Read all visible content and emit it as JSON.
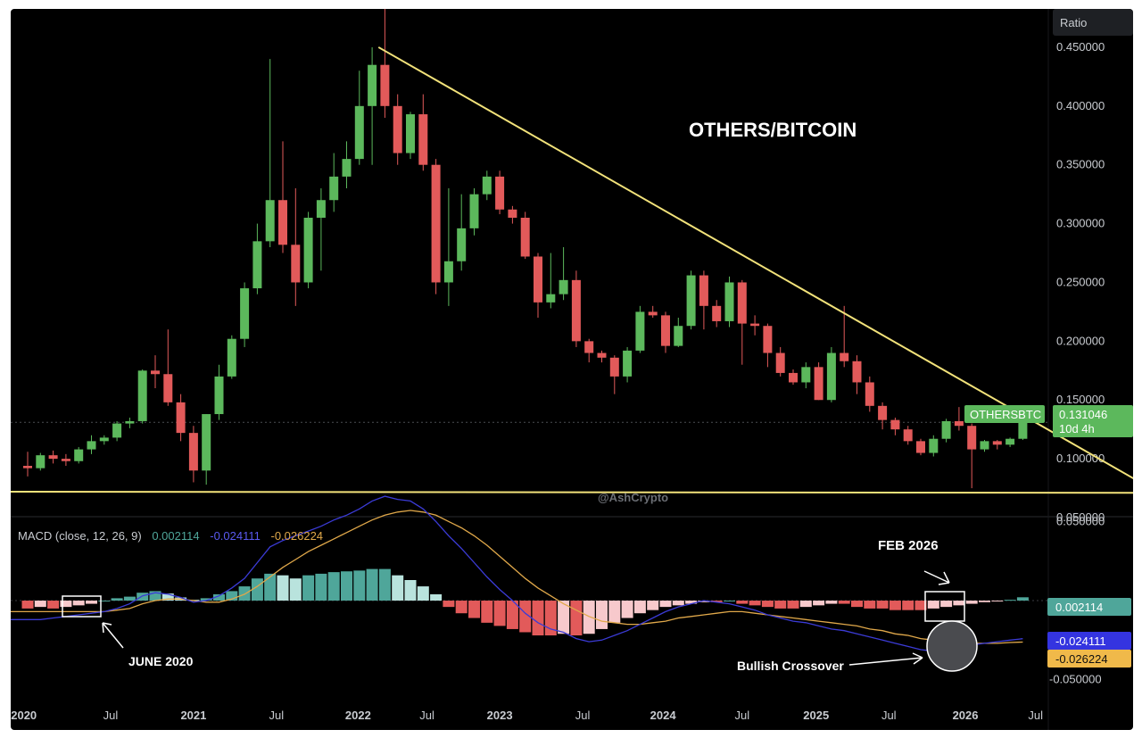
{
  "chart_title": "OTHERS/BITCOIN",
  "watermark": "@AshCrypto",
  "scale_button": "Ratio",
  "colors": {
    "background": "#000000",
    "up": "#5cb85c",
    "down": "#e25a5a",
    "trendline": "#f2e27a",
    "macd_line": "#3b3bd6",
    "signal_line": "#e0a84a",
    "hist_pos_strong": "#4fa69a",
    "hist_pos_weak": "#b9e3dd",
    "hist_neg_strong": "#e25a5a",
    "hist_neg_weak": "#f7c9cc"
  },
  "chart_data": [
    {
      "type": "candlestick",
      "title": "OTHERS/BITCOIN",
      "ylim": [
        0.05,
        0.475
      ],
      "y_ticks": [
        "0.450000",
        "0.400000",
        "0.350000",
        "0.300000",
        "0.250000",
        "0.200000",
        "0.150000",
        "0.100000",
        "0.050000"
      ],
      "x_ticks": [
        "2020",
        "Jul",
        "2021",
        "Jul",
        "2022",
        "Jul",
        "2023",
        "Jul",
        "2024",
        "Jul",
        "2025",
        "Jul",
        "2026",
        "Jul"
      ],
      "bar_period": "10 days",
      "last_price": {
        "symbol": "OTHERSBTC",
        "value": "0.131046",
        "countdown": "10d 4h"
      },
      "ohlc": [
        [
          0.094,
          0.106,
          0.085,
          0.092
        ],
        [
          0.092,
          0.105,
          0.09,
          0.103
        ],
        [
          0.103,
          0.107,
          0.096,
          0.1
        ],
        [
          0.1,
          0.104,
          0.094,
          0.098
        ],
        [
          0.098,
          0.11,
          0.096,
          0.108
        ],
        [
          0.108,
          0.12,
          0.104,
          0.115
        ],
        [
          0.115,
          0.12,
          0.112,
          0.118
        ],
        [
          0.118,
          0.132,
          0.115,
          0.13
        ],
        [
          0.13,
          0.135,
          0.126,
          0.132
        ],
        [
          0.132,
          0.176,
          0.13,
          0.175
        ],
        [
          0.175,
          0.188,
          0.16,
          0.172
        ],
        [
          0.172,
          0.21,
          0.145,
          0.148
        ],
        [
          0.148,
          0.155,
          0.115,
          0.122
        ],
        [
          0.122,
          0.128,
          0.08,
          0.09
        ],
        [
          0.09,
          0.138,
          0.078,
          0.138
        ],
        [
          0.138,
          0.18,
          0.133,
          0.17
        ],
        [
          0.17,
          0.205,
          0.168,
          0.202
        ],
        [
          0.202,
          0.25,
          0.195,
          0.245
        ],
        [
          0.245,
          0.3,
          0.24,
          0.285
        ],
        [
          0.285,
          0.44,
          0.28,
          0.32
        ],
        [
          0.32,
          0.37,
          0.275,
          0.282
        ],
        [
          0.282,
          0.33,
          0.23,
          0.25
        ],
        [
          0.25,
          0.31,
          0.245,
          0.305
        ],
        [
          0.305,
          0.33,
          0.26,
          0.32
        ],
        [
          0.32,
          0.36,
          0.31,
          0.34
        ],
        [
          0.34,
          0.37,
          0.33,
          0.355
        ],
        [
          0.355,
          0.43,
          0.35,
          0.4
        ],
        [
          0.4,
          0.45,
          0.35,
          0.435
        ],
        [
          0.435,
          0.492,
          0.39,
          0.4
        ],
        [
          0.4,
          0.41,
          0.35,
          0.36
        ],
        [
          0.36,
          0.395,
          0.355,
          0.393
        ],
        [
          0.393,
          0.41,
          0.345,
          0.35
        ],
        [
          0.35,
          0.355,
          0.24,
          0.25
        ],
        [
          0.25,
          0.33,
          0.23,
          0.268
        ],
        [
          0.268,
          0.325,
          0.26,
          0.296
        ],
        [
          0.296,
          0.33,
          0.29,
          0.325
        ],
        [
          0.325,
          0.345,
          0.32,
          0.34
        ],
        [
          0.34,
          0.345,
          0.308,
          0.312
        ],
        [
          0.312,
          0.315,
          0.3,
          0.305
        ],
        [
          0.305,
          0.31,
          0.27,
          0.272
        ],
        [
          0.272,
          0.275,
          0.22,
          0.233
        ],
        [
          0.233,
          0.275,
          0.228,
          0.24
        ],
        [
          0.24,
          0.28,
          0.235,
          0.252
        ],
        [
          0.252,
          0.26,
          0.195,
          0.2
        ],
        [
          0.2,
          0.202,
          0.182,
          0.19
        ],
        [
          0.19,
          0.192,
          0.182,
          0.186
        ],
        [
          0.186,
          0.188,
          0.155,
          0.17
        ],
        [
          0.17,
          0.195,
          0.165,
          0.192
        ],
        [
          0.192,
          0.23,
          0.19,
          0.225
        ],
        [
          0.225,
          0.23,
          0.22,
          0.222
        ],
        [
          0.222,
          0.225,
          0.19,
          0.196
        ],
        [
          0.196,
          0.22,
          0.195,
          0.213
        ],
        [
          0.213,
          0.26,
          0.21,
          0.256
        ],
        [
          0.256,
          0.26,
          0.21,
          0.23
        ],
        [
          0.23,
          0.235,
          0.212,
          0.217
        ],
        [
          0.217,
          0.255,
          0.212,
          0.25
        ],
        [
          0.25,
          0.252,
          0.18,
          0.215
        ],
        [
          0.215,
          0.222,
          0.205,
          0.213
        ],
        [
          0.213,
          0.215,
          0.178,
          0.19
        ],
        [
          0.19,
          0.195,
          0.17,
          0.173
        ],
        [
          0.173,
          0.176,
          0.163,
          0.165
        ],
        [
          0.165,
          0.182,
          0.16,
          0.178
        ],
        [
          0.178,
          0.182,
          0.15,
          0.15
        ],
        [
          0.15,
          0.195,
          0.148,
          0.19
        ],
        [
          0.19,
          0.23,
          0.178,
          0.183
        ],
        [
          0.183,
          0.188,
          0.155,
          0.165
        ],
        [
          0.165,
          0.17,
          0.14,
          0.145
        ],
        [
          0.145,
          0.148,
          0.125,
          0.133
        ],
        [
          0.133,
          0.135,
          0.12,
          0.125
        ],
        [
          0.125,
          0.128,
          0.112,
          0.115
        ],
        [
          0.115,
          0.117,
          0.103,
          0.105
        ],
        [
          0.105,
          0.12,
          0.102,
          0.117
        ],
        [
          0.117,
          0.134,
          0.114,
          0.132
        ],
        [
          0.132,
          0.144,
          0.124,
          0.128
        ],
        [
          0.128,
          0.13,
          0.075,
          0.108
        ],
        [
          0.108,
          0.116,
          0.106,
          0.115
        ],
        [
          0.115,
          0.116,
          0.108,
          0.112
        ],
        [
          0.112,
          0.118,
          0.11,
          0.117
        ],
        [
          0.117,
          0.132,
          0.116,
          0.131
        ]
      ],
      "trendlines": [
        {
          "label": "descending resistance",
          "from": {
            "bar": 27.5,
            "value": 0.45
          },
          "to": {
            "bar": 88.5,
            "value": 0.072
          }
        },
        {
          "label": "horizontal support",
          "from": {
            "bar": 0,
            "value": 0.072
          },
          "to": {
            "bar": 88.5,
            "value": 0.071
          }
        }
      ]
    },
    {
      "type": "macd",
      "settings_label": "MACD (close, 12, 26, 9)",
      "ylim": [
        -0.066,
        0.0525
      ],
      "y_ticks": [
        "0.050000",
        "-0.050000"
      ],
      "values": {
        "histogram": "0.002114",
        "macd": "-0.024111",
        "signal": "-0.026224"
      },
      "histogram": [
        -0.005,
        -0.004,
        -0.005,
        -0.004,
        -0.003,
        -0.002,
        0.0,
        0.0015,
        0.0025,
        0.005,
        0.006,
        0.0045,
        0.002,
        0.0005,
        0.0015,
        0.004,
        0.006,
        0.009,
        0.014,
        0.017,
        0.016,
        0.014,
        0.016,
        0.017,
        0.018,
        0.0185,
        0.019,
        0.02,
        0.02,
        0.016,
        0.013,
        0.009,
        0.004,
        -0.004,
        -0.008,
        -0.011,
        -0.014,
        -0.016,
        -0.018,
        -0.02,
        -0.022,
        -0.022,
        -0.021,
        -0.022,
        -0.021,
        -0.018,
        -0.014,
        -0.011,
        -0.008,
        -0.006,
        -0.004,
        -0.003,
        -0.002,
        -0.001,
        -0.001,
        0.0,
        -0.002,
        -0.003,
        -0.004,
        -0.005,
        -0.005,
        -0.004,
        -0.003,
        -0.002,
        -0.002,
        -0.004,
        -0.005,
        -0.005,
        -0.006,
        -0.006,
        -0.006,
        -0.005,
        -0.004,
        -0.003,
        -0.002,
        -0.001,
        -0.0005,
        0.0005,
        0.0021
      ],
      "macd_line": [
        -0.012,
        -0.012,
        -0.011,
        -0.01,
        -0.009,
        -0.008,
        -0.007,
        -0.005,
        -0.002,
        0.003,
        0.005,
        0.004,
        0.002,
        -0.001,
        0.0,
        0.003,
        0.008,
        0.014,
        0.024,
        0.034,
        0.038,
        0.041,
        0.044,
        0.047,
        0.051,
        0.054,
        0.058,
        0.063,
        0.066,
        0.064,
        0.063,
        0.058,
        0.05,
        0.041,
        0.033,
        0.024,
        0.015,
        0.007,
        0.0,
        -0.008,
        -0.014,
        -0.018,
        -0.02,
        -0.024,
        -0.026,
        -0.025,
        -0.022,
        -0.019,
        -0.015,
        -0.011,
        -0.007,
        -0.004,
        -0.002,
        0.0,
        -0.001,
        -0.002,
        -0.004,
        -0.006,
        -0.009,
        -0.011,
        -0.013,
        -0.014,
        -0.016,
        -0.018,
        -0.019,
        -0.021,
        -0.023,
        -0.025,
        -0.027,
        -0.029,
        -0.031,
        -0.032,
        -0.031,
        -0.03,
        -0.028,
        -0.027,
        -0.026,
        -0.025,
        -0.0241
      ],
      "signal_line": [
        -0.007,
        -0.007,
        -0.007,
        -0.007,
        -0.007,
        -0.007,
        -0.007,
        -0.006,
        -0.005,
        -0.002,
        0.0,
        0.001,
        0.001,
        0.0,
        -0.001,
        -0.001,
        0.001,
        0.004,
        0.009,
        0.015,
        0.021,
        0.026,
        0.031,
        0.035,
        0.039,
        0.043,
        0.047,
        0.051,
        0.054,
        0.056,
        0.057,
        0.056,
        0.054,
        0.05,
        0.046,
        0.041,
        0.035,
        0.028,
        0.021,
        0.014,
        0.008,
        0.003,
        -0.002,
        -0.006,
        -0.01,
        -0.013,
        -0.014,
        -0.015,
        -0.015,
        -0.014,
        -0.013,
        -0.011,
        -0.01,
        -0.009,
        -0.008,
        -0.007,
        -0.007,
        -0.008,
        -0.009,
        -0.01,
        -0.011,
        -0.012,
        -0.013,
        -0.014,
        -0.015,
        -0.016,
        -0.018,
        -0.019,
        -0.021,
        -0.022,
        -0.024,
        -0.025,
        -0.026,
        -0.027,
        -0.027,
        -0.027,
        -0.027,
        -0.0265,
        -0.0262
      ]
    }
  ],
  "annotations": {
    "june_2020": "JUNE 2020",
    "feb_2026": "FEB 2026",
    "bullish_crossover": "Bullish Crossover"
  }
}
